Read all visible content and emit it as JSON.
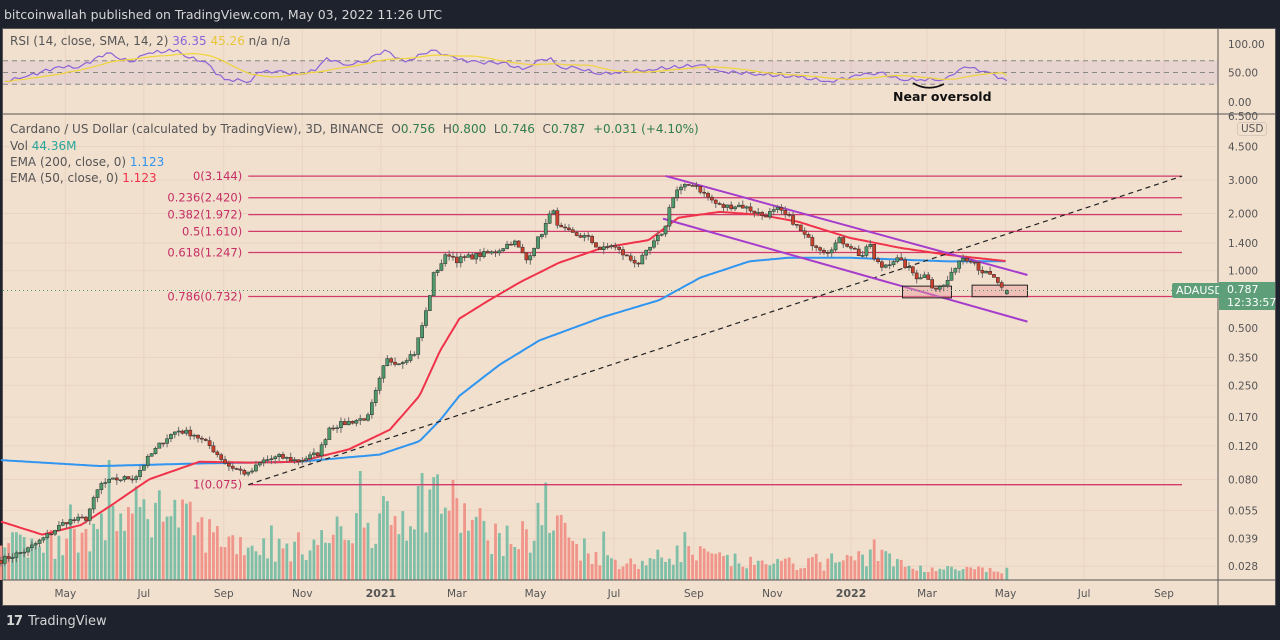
{
  "header": {
    "published": "bitcoinwallah published on TradingView.com, May 03, 2022 11:26 UTC"
  },
  "legend": {
    "rsi_label": "RSI (14, close, SMA, 14, 2)",
    "rsi_value": "36.35",
    "rsi_signal": "45.26",
    "rsi_na1": "n/a",
    "rsi_na2": "n/a",
    "symbol": "Cardano / US Dollar (calculated by TradingView), 3D, BINANCE",
    "o_label": "O",
    "o_value": "0.756",
    "h_label": "H",
    "h_value": "0.800",
    "l_label": "L",
    "l_value": "0.746",
    "c_label": "C",
    "c_value": "0.787",
    "change": "+0.031 (+4.10%)",
    "vol_label": "Vol",
    "vol_value": "44.36M",
    "ema200_label": "EMA (200, close, 0)",
    "ema200_value": "1.123",
    "ema50_label": "EMA (50, close, 0)",
    "ema50_value": "1.123"
  },
  "annotations": {
    "near_oversold": "Near oversold"
  },
  "price_tag": {
    "symbol": "ADAUSD",
    "price": "0.787",
    "countdown": "12:33:57",
    "currency": "USD"
  },
  "footer": {
    "logo_mark": "17",
    "brand": "TradingView"
  },
  "colors": {
    "background": "#f2e0cf",
    "up": "#4f9a6a",
    "down": "#c9402c",
    "ema200": "#2f95f0",
    "ema50": "#f0334a",
    "fib": "#d23a6a",
    "channel": "#a63ccc",
    "rsi": "#8d63d8",
    "rsi_signal": "#f0d43a",
    "vol_up": "#7fbfa8",
    "vol_down": "#f0958a",
    "tag": "#5e9e78"
  },
  "chart_data": {
    "type": "candlestick",
    "symbol": "ADAUSD",
    "interval": "3D",
    "scale": "log",
    "grid": true,
    "ylim": [
      0.025,
      6.5
    ],
    "price_axis_ticks": [
      "6.500",
      "4.500",
      "3.000",
      "2.000",
      "1.400",
      "1.000",
      "0.500",
      "0.350",
      "0.250",
      "0.170",
      "0.120",
      "0.080",
      "0.055",
      "0.039",
      "0.028"
    ],
    "rsi_axis_ticks": [
      "100.00",
      "50.00",
      "0.00"
    ],
    "date_axis": [
      {
        "label": "May",
        "date": "2020-05-01"
      },
      {
        "label": "Jul",
        "date": "2020-07-01"
      },
      {
        "label": "Sep",
        "date": "2020-09-01"
      },
      {
        "label": "Nov",
        "date": "2020-11-01"
      },
      {
        "label": "2021",
        "date": "2021-01-01"
      },
      {
        "label": "Mar",
        "date": "2021-03-01"
      },
      {
        "label": "May",
        "date": "2021-05-01"
      },
      {
        "label": "Jul",
        "date": "2021-07-01"
      },
      {
        "label": "Sep",
        "date": "2021-09-01"
      },
      {
        "label": "Nov",
        "date": "2021-11-01"
      },
      {
        "label": "2022",
        "date": "2022-01-01"
      },
      {
        "label": "Mar",
        "date": "2022-03-01"
      },
      {
        "label": "May",
        "date": "2022-05-01"
      },
      {
        "label": "Jul",
        "date": "2022-07-01"
      },
      {
        "label": "Sep",
        "date": "2022-09-01"
      }
    ],
    "price_close_keypoints": [
      [
        "2020-03-12",
        0.03
      ],
      [
        "2020-04-01",
        0.034
      ],
      [
        "2020-04-16",
        0.04
      ],
      [
        "2020-05-01",
        0.048
      ],
      [
        "2020-05-17",
        0.05
      ],
      [
        "2020-05-28",
        0.075
      ],
      [
        "2020-06-09",
        0.08
      ],
      [
        "2020-06-24",
        0.082
      ],
      [
        "2020-07-05",
        0.105
      ],
      [
        "2020-07-17",
        0.13
      ],
      [
        "2020-07-27",
        0.145
      ],
      [
        "2020-08-09",
        0.138
      ],
      [
        "2020-08-21",
        0.12
      ],
      [
        "2020-09-04",
        0.095
      ],
      [
        "2020-09-20",
        0.085
      ],
      [
        "2020-10-01",
        0.1
      ],
      [
        "2020-10-14",
        0.105
      ],
      [
        "2020-10-29",
        0.1
      ],
      [
        "2020-11-14",
        0.11
      ],
      [
        "2020-11-22",
        0.15
      ],
      [
        "2020-12-07",
        0.16
      ],
      [
        "2020-12-22",
        0.17
      ],
      [
        "2021-01-05",
        0.34
      ],
      [
        "2021-01-15",
        0.33
      ],
      [
        "2021-01-27",
        0.37
      ],
      [
        "2021-02-07",
        0.68
      ],
      [
        "2021-02-10",
        0.93
      ],
      [
        "2021-02-22",
        1.24
      ],
      [
        "2021-03-01",
        1.14
      ],
      [
        "2021-03-15",
        1.2
      ],
      [
        "2021-03-30",
        1.25
      ],
      [
        "2021-04-14",
        1.44
      ],
      [
        "2021-04-24",
        1.14
      ],
      [
        "2021-05-07",
        1.64
      ],
      [
        "2021-05-15",
        2.14
      ],
      [
        "2021-05-18",
        1.69
      ],
      [
        "2021-05-31",
        1.55
      ],
      [
        "2021-06-10",
        1.5
      ],
      [
        "2021-06-21",
        1.28
      ],
      [
        "2021-06-29",
        1.37
      ],
      [
        "2021-07-13",
        1.15
      ],
      [
        "2021-07-20",
        1.1
      ],
      [
        "2021-08-01",
        1.4
      ],
      [
        "2021-08-10",
        1.7
      ],
      [
        "2021-08-12",
        2.14
      ],
      [
        "2021-08-19",
        2.65
      ],
      [
        "2021-09-01",
        2.89
      ],
      [
        "2021-09-08",
        2.56
      ],
      [
        "2021-09-20",
        2.2
      ],
      [
        "2021-09-24",
        2.17
      ],
      [
        "2021-10-07",
        2.21
      ],
      [
        "2021-10-25",
        1.95
      ],
      [
        "2021-11-05",
        2.09
      ],
      [
        "2021-11-16",
        1.85
      ],
      [
        "2021-11-24",
        1.58
      ],
      [
        "2021-12-01",
        1.41
      ],
      [
        "2021-12-13",
        1.26
      ],
      [
        "2021-12-23",
        1.45
      ],
      [
        "2022-01-02",
        1.33
      ],
      [
        "2022-01-09",
        1.18
      ],
      [
        "2022-01-18",
        1.45
      ],
      [
        "2022-01-19",
        1.14
      ],
      [
        "2022-01-25",
        1.05
      ],
      [
        "2022-02-05",
        1.16
      ],
      [
        "2022-02-13",
        1.05
      ],
      [
        "2022-02-21",
        0.93
      ],
      [
        "2022-03-01",
        0.95
      ],
      [
        "2022-03-06",
        0.81
      ],
      [
        "2022-03-13",
        0.82
      ],
      [
        "2022-03-20",
        0.95
      ],
      [
        "2022-03-24",
        1.1
      ],
      [
        "2022-03-29",
        1.18
      ],
      [
        "2022-04-06",
        1.14
      ],
      [
        "2022-04-11",
        1.01
      ],
      [
        "2022-04-20",
        0.93
      ],
      [
        "2022-04-26",
        0.86
      ],
      [
        "2022-04-29",
        0.77
      ],
      [
        "2022-05-02",
        0.787
      ]
    ],
    "last_candle": {
      "open": 0.756,
      "high": 0.8,
      "low": 0.746,
      "close": 0.787
    },
    "ema200_keypoints": [
      [
        "2020-03-12",
        0.101
      ],
      [
        "2020-05-28",
        0.094
      ],
      [
        "2020-08-13",
        0.097
      ],
      [
        "2020-10-29",
        0.099
      ],
      [
        "2020-12-31",
        0.108
      ],
      [
        "2021-01-31",
        0.127
      ],
      [
        "2021-02-16",
        0.164
      ],
      [
        "2021-03-03",
        0.22
      ],
      [
        "2021-04-03",
        0.32
      ],
      [
        "2021-05-04",
        0.43
      ],
      [
        "2021-06-22",
        0.57
      ],
      [
        "2021-08-05",
        0.7
      ],
      [
        "2021-09-06",
        0.92
      ],
      [
        "2021-10-14",
        1.12
      ],
      [
        "2021-11-13",
        1.17
      ],
      [
        "2021-12-31",
        1.17
      ],
      [
        "2022-03-18",
        1.12
      ],
      [
        "2022-05-02",
        1.123
      ]
    ],
    "ema50_keypoints": [
      [
        "2020-03-12",
        0.048
      ],
      [
        "2020-04-13",
        0.041
      ],
      [
        "2020-05-13",
        0.046
      ],
      [
        "2020-06-05",
        0.058
      ],
      [
        "2020-07-05",
        0.08
      ],
      [
        "2020-08-13",
        0.099
      ],
      [
        "2020-09-22",
        0.098
      ],
      [
        "2020-10-29",
        0.099
      ],
      [
        "2020-12-07",
        0.115
      ],
      [
        "2021-01-08",
        0.146
      ],
      [
        "2021-01-31",
        0.22
      ],
      [
        "2021-02-16",
        0.38
      ],
      [
        "2021-03-03",
        0.56
      ],
      [
        "2021-03-26",
        0.7
      ],
      [
        "2021-04-19",
        0.87
      ],
      [
        "2021-05-19",
        1.1
      ],
      [
        "2021-06-22",
        1.32
      ],
      [
        "2021-07-28",
        1.45
      ],
      [
        "2021-08-20",
        1.9
      ],
      [
        "2021-09-21",
        2.04
      ],
      [
        "2021-10-22",
        1.97
      ],
      [
        "2021-11-21",
        1.81
      ],
      [
        "2021-12-31",
        1.49
      ],
      [
        "2022-02-08",
        1.32
      ],
      [
        "2022-03-18",
        1.21
      ],
      [
        "2022-05-02",
        1.123
      ]
    ],
    "volume_relative_envelope": [
      [
        "2020-03-12",
        0.3
      ],
      [
        "2020-05-01",
        0.35
      ],
      [
        "2020-06-15",
        0.6
      ],
      [
        "2020-07-20",
        0.65
      ],
      [
        "2020-08-15",
        0.45
      ],
      [
        "2020-09-15",
        0.35
      ],
      [
        "2020-10-15",
        0.28
      ],
      [
        "2020-11-15",
        0.35
      ],
      [
        "2020-12-10",
        0.5
      ],
      [
        "2021-01-10",
        0.55
      ],
      [
        "2021-02-10",
        0.85
      ],
      [
        "2021-03-05",
        0.6
      ],
      [
        "2021-04-10",
        0.35
      ],
      [
        "2021-05-15",
        0.5
      ],
      [
        "2021-06-15",
        0.25
      ],
      [
        "2021-07-15",
        0.15
      ],
      [
        "2021-08-20",
        0.25
      ],
      [
        "2021-09-10",
        0.22
      ],
      [
        "2021-10-15",
        0.15
      ],
      [
        "2021-11-15",
        0.15
      ],
      [
        "2021-12-15",
        0.15
      ],
      [
        "2022-01-20",
        0.25
      ],
      [
        "2022-02-15",
        0.12
      ],
      [
        "2022-03-15",
        0.1
      ],
      [
        "2022-05-02",
        0.08
      ]
    ],
    "rsi_keypoints": [
      [
        "2020-03-15",
        35
      ],
      [
        "2020-03-30",
        42
      ],
      [
        "2020-04-26",
        60
      ],
      [
        "2020-05-11",
        58
      ],
      [
        "2020-06-02",
        83
      ],
      [
        "2020-06-20",
        68
      ],
      [
        "2020-07-05",
        83
      ],
      [
        "2020-07-27",
        88
      ],
      [
        "2020-08-02",
        77
      ],
      [
        "2020-08-18",
        68
      ],
      [
        "2020-08-26",
        47
      ],
      [
        "2020-09-05",
        38
      ],
      [
        "2020-09-22",
        35
      ],
      [
        "2020-09-27",
        50
      ],
      [
        "2020-10-12",
        52
      ],
      [
        "2020-10-29",
        47
      ],
      [
        "2020-11-11",
        53
      ],
      [
        "2020-11-20",
        75
      ],
      [
        "2020-12-03",
        63
      ],
      [
        "2020-12-18",
        67
      ],
      [
        "2021-01-04",
        88
      ],
      [
        "2021-01-12",
        75
      ],
      [
        "2021-01-20",
        68
      ],
      [
        "2021-02-09",
        88
      ],
      [
        "2021-02-21",
        80
      ],
      [
        "2021-03-02",
        72
      ],
      [
        "2021-03-19",
        67
      ],
      [
        "2021-04-05",
        67
      ],
      [
        "2021-04-21",
        55
      ],
      [
        "2021-05-06",
        72
      ],
      [
        "2021-05-13",
        75
      ],
      [
        "2021-05-21",
        58
      ],
      [
        "2021-06-02",
        58
      ],
      [
        "2021-06-21",
        47
      ],
      [
        "2021-07-02",
        50
      ],
      [
        "2021-07-28",
        55
      ],
      [
        "2021-09-06",
        63
      ],
      [
        "2021-09-21",
        52
      ],
      [
        "2021-10-22",
        47
      ],
      [
        "2021-11-21",
        42
      ],
      [
        "2021-12-15",
        35
      ],
      [
        "2022-01-08",
        45
      ],
      [
        "2022-01-23",
        50
      ],
      [
        "2022-02-08",
        38
      ],
      [
        "2022-02-24",
        38
      ],
      [
        "2022-03-14",
        38
      ],
      [
        "2022-03-26",
        55
      ],
      [
        "2022-04-03",
        58
      ],
      [
        "2022-04-15",
        52
      ],
      [
        "2022-05-02",
        36.35
      ]
    ],
    "rsi_levels": [
      70,
      50,
      30
    ],
    "rsi_signal_last": 45.26,
    "fibonacci": {
      "start_date": "2020-09-20",
      "end_date": "2022-09-15",
      "levels": [
        {
          "label": "0(3.144)",
          "price": 3.144
        },
        {
          "label": "0.236(2.420)",
          "price": 2.42
        },
        {
          "label": "0.382(1.972)",
          "price": 1.972
        },
        {
          "label": "0.5(1.610)",
          "price": 1.61
        },
        {
          "label": "0.618(1.247)",
          "price": 1.247
        },
        {
          "label": "0.786(0.732)",
          "price": 0.732
        },
        {
          "label": "1(0.075)",
          "price": 0.075
        }
      ]
    },
    "trendline": {
      "from": [
        "2020-09-20",
        0.075
      ],
      "to": [
        "2022-09-15",
        3.144
      ],
      "style": "dashed"
    },
    "channel": {
      "upper": {
        "from": [
          "2021-08-10",
          3.15
        ],
        "to": [
          "2022-05-18",
          0.95
        ]
      },
      "lower": {
        "from": [
          "2021-08-08",
          1.88
        ],
        "to": [
          "2022-05-18",
          0.54
        ]
      }
    },
    "support_boxes": [
      {
        "from": "2022-02-10",
        "to": "2022-03-20",
        "top": 0.83,
        "bottom": 0.72
      },
      {
        "from": "2022-04-05",
        "to": "2022-05-18",
        "top": 0.84,
        "bottom": 0.73
      }
    ],
    "last_price_line": 0.787
  }
}
